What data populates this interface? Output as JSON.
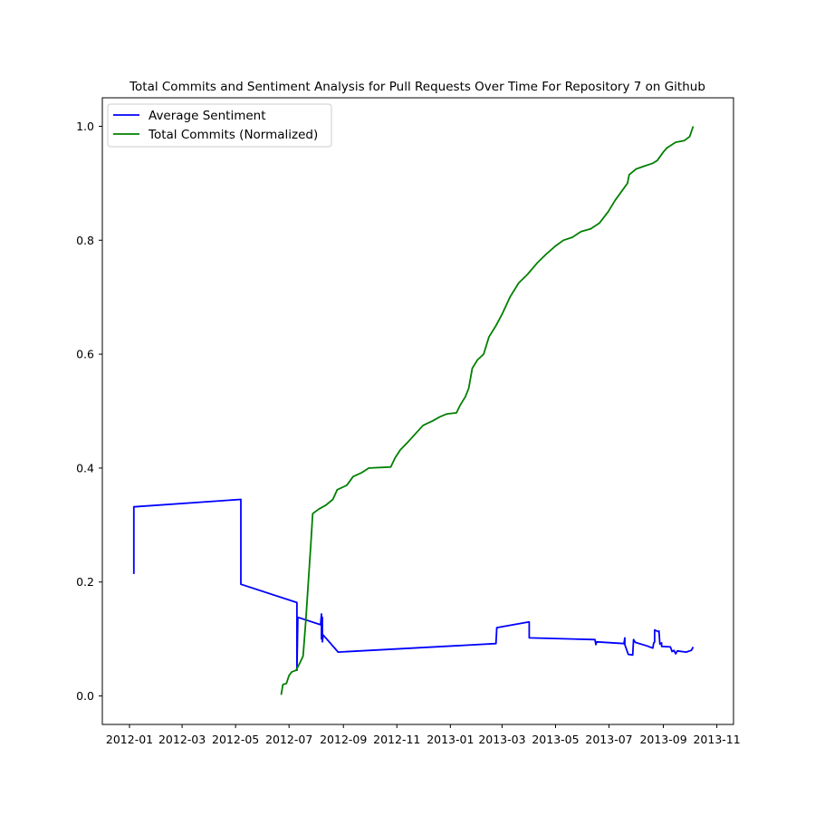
{
  "chart_data": {
    "type": "line",
    "title": "Total Commits and Sentiment Analysis for Pull Requests Over Time For Repository 7 on Github",
    "xlabel": "",
    "ylabel": "",
    "x_axis": {
      "scale": "date",
      "range": [
        "2011-12-01",
        "2013-11-20"
      ],
      "ticks": [
        "2012-01-01",
        "2012-03-01",
        "2012-05-01",
        "2012-07-01",
        "2012-09-01",
        "2012-11-01",
        "2013-01-01",
        "2013-03-01",
        "2013-05-01",
        "2013-07-01",
        "2013-09-01",
        "2013-11-01"
      ],
      "tick_labels": [
        "2012-01",
        "2012-03",
        "2012-05",
        "2012-07",
        "2012-09",
        "2012-11",
        "2013-01",
        "2013-03",
        "2013-05",
        "2013-07",
        "2013-09",
        "2013-11"
      ]
    },
    "y_axis": {
      "range": [
        -0.05,
        1.05
      ],
      "ticks": [
        0.0,
        0.2,
        0.4,
        0.6,
        0.8,
        1.0
      ],
      "tick_labels": [
        "0.0",
        "0.2",
        "0.4",
        "0.6",
        "0.8",
        "1.0"
      ]
    },
    "grid": false,
    "legend": {
      "placement": "upper-left"
    },
    "series": [
      {
        "name": "Average Sentiment",
        "color": "#0000ff",
        "points": [
          [
            "2012-01-06",
            0.214
          ],
          [
            "2012-01-06",
            0.332
          ],
          [
            "2012-05-07",
            0.345
          ],
          [
            "2012-05-07",
            0.196
          ],
          [
            "2012-07-10",
            0.164
          ],
          [
            "2012-07-10",
            0.045
          ],
          [
            "2012-07-11",
            0.138
          ],
          [
            "2012-08-06",
            0.125
          ],
          [
            "2012-08-07",
            0.144
          ],
          [
            "2012-08-07",
            0.1
          ],
          [
            "2012-08-08",
            0.138
          ],
          [
            "2012-08-08",
            0.095
          ],
          [
            "2012-08-09",
            0.107
          ],
          [
            "2012-08-26",
            0.077
          ],
          [
            "2013-02-22",
            0.092
          ],
          [
            "2013-02-23",
            0.12
          ],
          [
            "2013-04-01",
            0.13
          ],
          [
            "2013-04-01",
            0.102
          ],
          [
            "2013-06-15",
            0.099
          ],
          [
            "2013-06-16",
            0.09
          ],
          [
            "2013-06-17",
            0.095
          ],
          [
            "2013-07-18",
            0.092
          ],
          [
            "2013-07-19",
            0.102
          ],
          [
            "2013-07-19",
            0.09
          ],
          [
            "2013-07-23",
            0.073
          ],
          [
            "2013-07-28",
            0.072
          ],
          [
            "2013-07-29",
            0.099
          ],
          [
            "2013-07-31",
            0.094
          ],
          [
            "2013-08-13",
            0.088
          ],
          [
            "2013-08-20",
            0.084
          ],
          [
            "2013-08-21",
            0.093
          ],
          [
            "2013-08-22",
            0.095
          ],
          [
            "2013-08-22",
            0.116
          ],
          [
            "2013-08-26",
            0.113
          ],
          [
            "2013-08-27",
            0.114
          ],
          [
            "2013-08-28",
            0.091
          ],
          [
            "2013-08-30",
            0.093
          ],
          [
            "2013-08-30",
            0.087
          ],
          [
            "2013-09-09",
            0.086
          ],
          [
            "2013-09-11",
            0.078
          ],
          [
            "2013-09-13",
            0.08
          ],
          [
            "2013-09-15",
            0.074
          ],
          [
            "2013-09-17",
            0.079
          ],
          [
            "2013-09-27",
            0.077
          ],
          [
            "2013-10-03",
            0.08
          ],
          [
            "2013-10-05",
            0.086
          ]
        ]
      },
      {
        "name": "Total Commits (Normalized)",
        "color": "#008000",
        "points": [
          [
            "2012-06-22",
            0.002
          ],
          [
            "2012-06-24",
            0.02
          ],
          [
            "2012-06-28",
            0.022
          ],
          [
            "2012-07-01",
            0.036
          ],
          [
            "2012-07-04",
            0.042
          ],
          [
            "2012-07-09",
            0.045
          ],
          [
            "2012-07-14",
            0.06
          ],
          [
            "2012-07-17",
            0.07
          ],
          [
            "2012-07-20",
            0.13
          ],
          [
            "2012-07-23",
            0.2
          ],
          [
            "2012-07-26",
            0.27
          ],
          [
            "2012-07-28",
            0.32
          ],
          [
            "2012-08-04",
            0.328
          ],
          [
            "2012-08-12",
            0.335
          ],
          [
            "2012-08-20",
            0.345
          ],
          [
            "2012-08-25",
            0.362
          ],
          [
            "2012-09-05",
            0.37
          ],
          [
            "2012-09-12",
            0.385
          ],
          [
            "2012-09-22",
            0.392
          ],
          [
            "2012-09-30",
            0.4
          ],
          [
            "2012-10-25",
            0.402
          ],
          [
            "2012-10-30",
            0.418
          ],
          [
            "2012-11-05",
            0.432
          ],
          [
            "2012-11-15",
            0.448
          ],
          [
            "2012-11-22",
            0.46
          ],
          [
            "2012-12-01",
            0.475
          ],
          [
            "2012-12-12",
            0.483
          ],
          [
            "2012-12-20",
            0.49
          ],
          [
            "2012-12-28",
            0.495
          ],
          [
            "2013-01-08",
            0.497
          ],
          [
            "2013-01-12",
            0.51
          ],
          [
            "2013-01-18",
            0.525
          ],
          [
            "2013-01-22",
            0.54
          ],
          [
            "2013-01-26",
            0.575
          ],
          [
            "2013-02-01",
            0.59
          ],
          [
            "2013-02-08",
            0.6
          ],
          [
            "2013-02-14",
            0.63
          ],
          [
            "2013-02-22",
            0.65
          ],
          [
            "2013-03-01",
            0.67
          ],
          [
            "2013-03-10",
            0.7
          ],
          [
            "2013-03-20",
            0.725
          ],
          [
            "2013-03-30",
            0.74
          ],
          [
            "2013-04-10",
            0.76
          ],
          [
            "2013-04-20",
            0.775
          ],
          [
            "2013-05-01",
            0.79
          ],
          [
            "2013-05-10",
            0.8
          ],
          [
            "2013-05-20",
            0.805
          ],
          [
            "2013-05-30",
            0.815
          ],
          [
            "2013-06-10",
            0.82
          ],
          [
            "2013-06-20",
            0.83
          ],
          [
            "2013-06-30",
            0.85
          ],
          [
            "2013-07-08",
            0.87
          ],
          [
            "2013-07-15",
            0.885
          ],
          [
            "2013-07-22",
            0.9
          ],
          [
            "2013-07-24",
            0.915
          ],
          [
            "2013-08-01",
            0.925
          ],
          [
            "2013-08-10",
            0.93
          ],
          [
            "2013-08-20",
            0.935
          ],
          [
            "2013-08-25",
            0.94
          ],
          [
            "2013-09-01",
            0.955
          ],
          [
            "2013-09-05",
            0.962
          ],
          [
            "2013-09-10",
            0.967
          ],
          [
            "2013-09-15",
            0.972
          ],
          [
            "2013-09-25",
            0.975
          ],
          [
            "2013-10-01",
            0.982
          ],
          [
            "2013-10-05",
            1.0
          ]
        ]
      }
    ]
  }
}
